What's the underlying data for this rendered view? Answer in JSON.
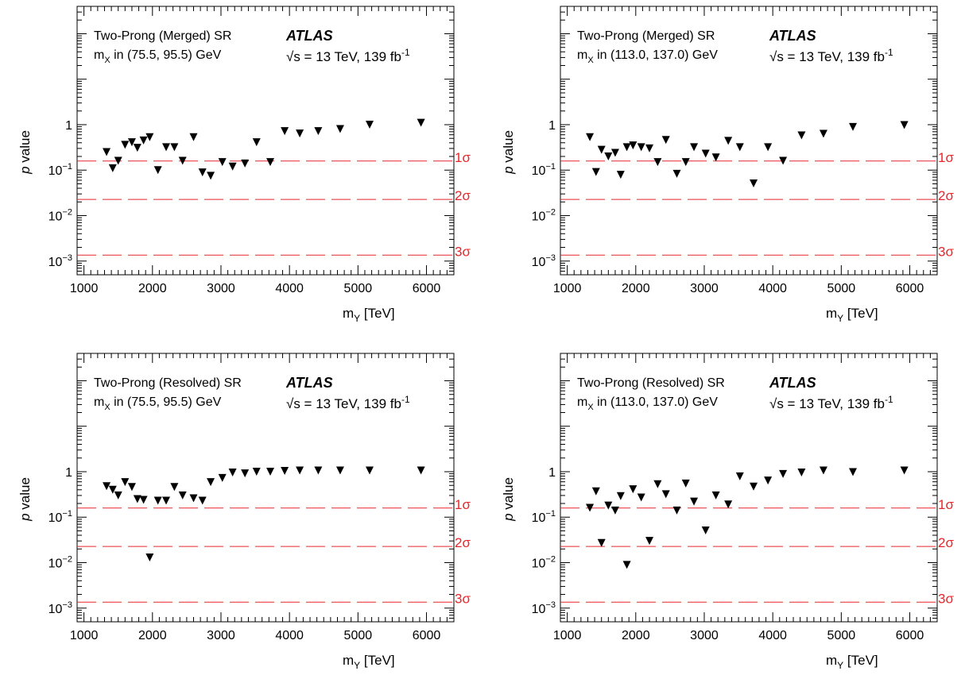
{
  "figure": {
    "experiment": "ATLAS",
    "energy_label": "√s = 13 TeV, 139 fb",
    "energy_sup": "-1",
    "colors": {
      "axis": "#000000",
      "marker": "#000000",
      "sigma_line": "#e8262a",
      "sigma_text": "#e8262a"
    }
  },
  "chart_data": [
    {
      "type": "scatter",
      "title": "Two-Prong (Merged) SR",
      "subtitle_main": "m",
      "subtitle_sub": "X",
      "subtitle_rest": " in (75.5, 95.5) GeV",
      "xlabel_main": "m",
      "xlabel_sub": "Y",
      "xlabel_rest": " [TeV]",
      "ylabel_italic": "p",
      "ylabel_rest": " value",
      "xlim": [
        900,
        6400
      ],
      "ylim": [
        0.0005,
        400
      ],
      "yscale": "log",
      "x_ticks": [
        1000,
        2000,
        3000,
        4000,
        5000,
        6000
      ],
      "y_ticks": [
        {
          "value": 1,
          "label": "1",
          "exp": ""
        },
        {
          "value": 0.1,
          "label": "10",
          "exp": "−1"
        },
        {
          "value": 0.01,
          "label": "10",
          "exp": "−2"
        },
        {
          "value": 0.001,
          "label": "10",
          "exp": "−3"
        }
      ],
      "sigma_lines": [
        {
          "value": 0.1587,
          "label": "1σ"
        },
        {
          "value": 0.02275,
          "label": "2σ"
        },
        {
          "value": 0.00135,
          "label": "3σ"
        }
      ],
      "marker": "triangle-down",
      "x": [
        1330,
        1420,
        1500,
        1600,
        1700,
        1780,
        1870,
        1960,
        2080,
        2200,
        2320,
        2440,
        2600,
        2730,
        2850,
        3020,
        3170,
        3350,
        3520,
        3720,
        3930,
        4150,
        4420,
        4740,
        5170,
        5920
      ],
      "y": [
        0.25,
        0.11,
        0.16,
        0.36,
        0.41,
        0.31,
        0.45,
        0.53,
        0.1,
        0.32,
        0.32,
        0.16,
        0.53,
        0.089,
        0.075,
        0.15,
        0.12,
        0.14,
        0.41,
        0.15,
        0.72,
        0.64,
        0.72,
        0.8,
        1.0,
        1.1
      ]
    },
    {
      "type": "scatter",
      "title": "Two-Prong (Merged) SR",
      "subtitle_main": "m",
      "subtitle_sub": "X",
      "subtitle_rest": " in (113.0, 137.0) GeV",
      "xlabel_main": "m",
      "xlabel_sub": "Y",
      "xlabel_rest": " [TeV]",
      "ylabel_italic": "p",
      "ylabel_rest": " value",
      "xlim": [
        900,
        6400
      ],
      "ylim": [
        0.0005,
        400
      ],
      "yscale": "log",
      "x_ticks": [
        1000,
        2000,
        3000,
        4000,
        5000,
        6000
      ],
      "y_ticks": [
        {
          "value": 1,
          "label": "1",
          "exp": ""
        },
        {
          "value": 0.1,
          "label": "10",
          "exp": "−1"
        },
        {
          "value": 0.01,
          "label": "10",
          "exp": "−2"
        },
        {
          "value": 0.001,
          "label": "10",
          "exp": "−3"
        }
      ],
      "sigma_lines": [
        {
          "value": 0.1587,
          "label": "1σ"
        },
        {
          "value": 0.02275,
          "label": "2σ"
        },
        {
          "value": 0.00135,
          "label": "3σ"
        }
      ],
      "marker": "triangle-down",
      "x": [
        1330,
        1420,
        1500,
        1600,
        1700,
        1780,
        1870,
        1960,
        2080,
        2200,
        2320,
        2440,
        2600,
        2730,
        2850,
        3020,
        3170,
        3350,
        3520,
        3720,
        3930,
        4150,
        4420,
        4740,
        5170,
        5920
      ],
      "y": [
        0.53,
        0.091,
        0.28,
        0.2,
        0.24,
        0.079,
        0.32,
        0.35,
        0.32,
        0.3,
        0.15,
        0.46,
        0.083,
        0.15,
        0.32,
        0.23,
        0.19,
        0.44,
        0.32,
        0.051,
        0.32,
        0.16,
        0.58,
        0.63,
        0.89,
        0.98
      ]
    },
    {
      "type": "scatter",
      "title": "Two-Prong (Resolved) SR",
      "subtitle_main": "m",
      "subtitle_sub": "X",
      "subtitle_rest": " in (75.5, 95.5) GeV",
      "xlabel_main": "m",
      "xlabel_sub": "Y",
      "xlabel_rest": " [TeV]",
      "ylabel_italic": "p",
      "ylabel_rest": " value",
      "xlim": [
        900,
        6400
      ],
      "ylim": [
        0.0005,
        400
      ],
      "yscale": "log",
      "x_ticks": [
        1000,
        2000,
        3000,
        4000,
        5000,
        6000
      ],
      "y_ticks": [
        {
          "value": 1,
          "label": "1",
          "exp": ""
        },
        {
          "value": 0.1,
          "label": "10",
          "exp": "−1"
        },
        {
          "value": 0.01,
          "label": "10",
          "exp": "−2"
        },
        {
          "value": 0.001,
          "label": "10",
          "exp": "−3"
        }
      ],
      "sigma_lines": [
        {
          "value": 0.1587,
          "label": "1σ"
        },
        {
          "value": 0.02275,
          "label": "2σ"
        },
        {
          "value": 0.00135,
          "label": "3σ"
        }
      ],
      "marker": "triangle-down",
      "x": [
        1330,
        1420,
        1500,
        1600,
        1700,
        1780,
        1870,
        1960,
        2080,
        2200,
        2320,
        2440,
        2600,
        2730,
        2850,
        3020,
        3170,
        3350,
        3520,
        3720,
        3930,
        4150,
        4420,
        4740,
        5170,
        5920
      ],
      "y": [
        0.48,
        0.4,
        0.3,
        0.59,
        0.46,
        0.25,
        0.24,
        0.013,
        0.23,
        0.23,
        0.46,
        0.3,
        0.26,
        0.23,
        0.59,
        0.73,
        0.96,
        0.92,
        1.0,
        1.0,
        1.04,
        1.06,
        1.06,
        1.06,
        1.06,
        1.06
      ]
    },
    {
      "type": "scatter",
      "title": "Two-Prong (Resolved) SR",
      "subtitle_main": "m",
      "subtitle_sub": "X",
      "subtitle_rest": " in (113.0, 137.0) GeV",
      "xlabel_main": "m",
      "xlabel_sub": "Y",
      "xlabel_rest": " [TeV]",
      "ylabel_italic": "p",
      "ylabel_rest": " value",
      "xlim": [
        900,
        6400
      ],
      "ylim": [
        0.0005,
        400
      ],
      "yscale": "log",
      "x_ticks": [
        1000,
        2000,
        3000,
        4000,
        5000,
        6000
      ],
      "y_ticks": [
        {
          "value": 1,
          "label": "1",
          "exp": ""
        },
        {
          "value": 0.1,
          "label": "10",
          "exp": "−1"
        },
        {
          "value": 0.01,
          "label": "10",
          "exp": "−2"
        },
        {
          "value": 0.001,
          "label": "10",
          "exp": "−3"
        }
      ],
      "sigma_lines": [
        {
          "value": 0.1587,
          "label": "1σ"
        },
        {
          "value": 0.02275,
          "label": "2σ"
        },
        {
          "value": 0.00135,
          "label": "3σ"
        }
      ],
      "marker": "triangle-down",
      "x": [
        1330,
        1420,
        1500,
        1600,
        1700,
        1780,
        1870,
        1960,
        2080,
        2200,
        2320,
        2440,
        2600,
        2730,
        2850,
        3020,
        3170,
        3350,
        3520,
        3720,
        3930,
        4150,
        4420,
        4740,
        5170,
        5920
      ],
      "y": [
        0.16,
        0.37,
        0.027,
        0.18,
        0.14,
        0.29,
        0.0089,
        0.41,
        0.27,
        0.03,
        0.53,
        0.32,
        0.14,
        0.55,
        0.22,
        0.051,
        0.3,
        0.19,
        0.79,
        0.47,
        0.64,
        0.89,
        0.96,
        1.06,
        0.98,
        1.06
      ]
    }
  ]
}
